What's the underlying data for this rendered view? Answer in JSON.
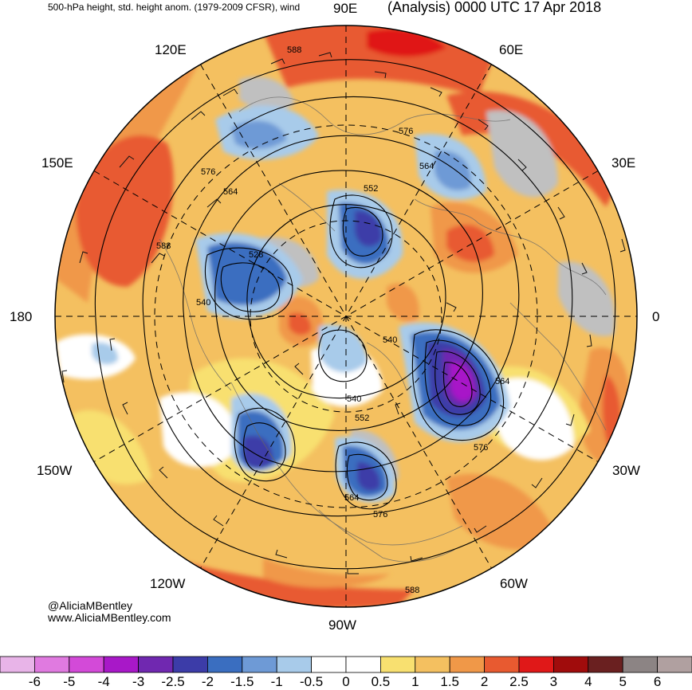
{
  "header": {
    "left": "500-hPa height, std. height anom. (1979-2009 CFSR), wind",
    "right": "(Analysis) 0000 UTC 17 Apr 2018"
  },
  "longitude_labels": {
    "e90": "90E",
    "e60": "60E",
    "e30": "30E",
    "zero": "0",
    "w30": "30W",
    "w60": "60W",
    "w90": "90W",
    "w120": "120W",
    "w150": "150W",
    "lon180": "180",
    "e150": "150E",
    "e120": "120E"
  },
  "contour_labels": [
    "588",
    "576",
    "564",
    "552",
    "528",
    "540",
    "540",
    "564",
    "576",
    "540",
    "552",
    "564",
    "576",
    "588",
    "564",
    "576",
    "588"
  ],
  "credit": {
    "handle": "@AliciaMBentley",
    "url": "www.AliciaMBentley.com"
  },
  "colorbar": {
    "ticks": [
      "-6",
      "-5",
      "-4",
      "-3",
      "-2.5",
      "-2",
      "-1.5",
      "-1",
      "-0.5",
      "0",
      "0.5",
      "1",
      "1.5",
      "2",
      "2.5",
      "3",
      "4",
      "5",
      "6"
    ],
    "colors": [
      "#e8b4e8",
      "#e07ae0",
      "#d34ad8",
      "#a818c8",
      "#7028b0",
      "#3c3ca8",
      "#3a6ec0",
      "#6e9ad6",
      "#a8cbea",
      "#ffffff",
      "#ffffff",
      "#f8e070",
      "#f4c060",
      "#f09848",
      "#e85a30",
      "#e01818",
      "#a00c0c",
      "#6a2020",
      "#8c8484",
      "#b0a0a0"
    ]
  },
  "map_colors": {
    "warm_light": "#f8e070",
    "warm_mid": "#f4c060",
    "warm_orange": "#f09848",
    "warm_red": "#e85a30",
    "hot": "#e01818",
    "cold_light": "#a8cbea",
    "cold_mid": "#6e9ad6",
    "cold_blue": "#3a6ec0",
    "cold_deep": "#3c3ca8",
    "cold_purple": "#7028b0",
    "cold_violet": "#a818c8",
    "missing_gray": "#c0c0c0"
  }
}
